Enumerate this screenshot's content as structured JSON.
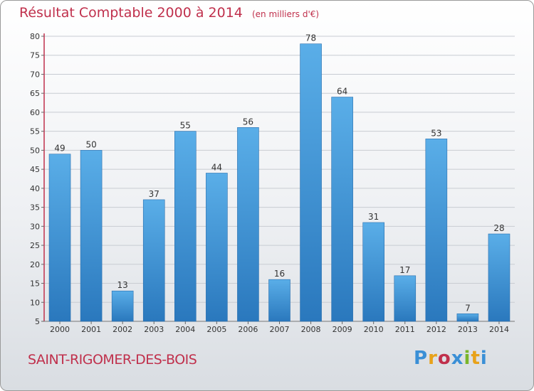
{
  "header": {
    "title": "Résultat Comptable 2000 à 2014",
    "subtitle": "(en milliers d'€)"
  },
  "footer": {
    "location": "SAINT-RIGOMER-DES-BOIS",
    "logo_text": "Proxiti"
  },
  "colors": {
    "title": "#c0304c",
    "bar_top": "#5aaee8",
    "bar_bottom": "#2a78bd",
    "axis_accent": "#c0304c"
  },
  "chart_data": {
    "type": "bar",
    "title": "Résultat Comptable 2000 à 2014",
    "subtitle": "(en milliers d'€)",
    "categories": [
      "2000",
      "2001",
      "2002",
      "2003",
      "2004",
      "2005",
      "2006",
      "2007",
      "2008",
      "2009",
      "2010",
      "2011",
      "2012",
      "2013",
      "2014"
    ],
    "values": [
      49,
      50,
      13,
      37,
      55,
      44,
      56,
      16,
      78,
      64,
      31,
      17,
      53,
      7,
      28
    ],
    "ylim": [
      5,
      80
    ],
    "yticks": [
      5,
      10,
      15,
      20,
      25,
      30,
      35,
      40,
      45,
      50,
      55,
      60,
      65,
      70,
      75,
      80
    ],
    "grid": true,
    "data_labels": true
  }
}
